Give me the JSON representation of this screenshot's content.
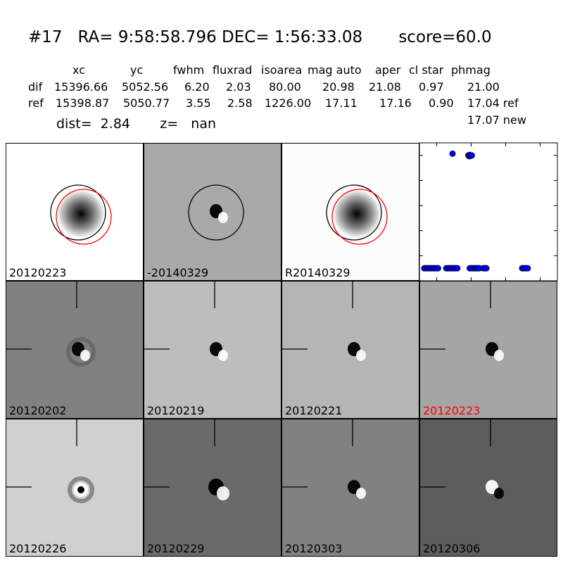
{
  "header": {
    "title": "#17   RA= 9:58:58.796 DEC= 1:56:33.08       score=60.0",
    "columns": [
      "xc",
      "yc",
      "fwhm",
      "fluxrad",
      "isoarea",
      "mag auto",
      "aper",
      "cl star",
      "phmag"
    ],
    "rows": [
      {
        "label": "dif",
        "values": [
          "15396.66",
          "5052.56",
          "6.20",
          "2.03",
          "80.00",
          "20.98",
          "21.08",
          "0.97",
          "21.00"
        ]
      },
      {
        "label": "ref",
        "values": [
          "15398.87",
          "5050.77",
          "3.55",
          "2.58",
          "1226.00",
          "17.11",
          "17.16",
          "0.90",
          "17.04 ref"
        ]
      }
    ],
    "extra_phmag": "17.07 new",
    "dist_line": "dist=  2.84       z=   nan"
  },
  "panels": [
    {
      "label": "20120223",
      "label_color": "#000000",
      "bg": "#ffffff",
      "kind": "ref-star",
      "circles": "black-red"
    },
    {
      "label": "-20140329",
      "label_color": "#000000",
      "bg": "#a9a9a9",
      "kind": "dipole",
      "circles": "black"
    },
    {
      "label": "R20140329",
      "label_color": "#000000",
      "bg": "#fcfcfc",
      "kind": "ref-star",
      "circles": "black-red"
    },
    {
      "label": "20120202",
      "label_color": "#000000",
      "bg": "#818181",
      "kind": "dipole-ring"
    },
    {
      "label": "20120219",
      "label_color": "#000000",
      "bg": "#bdbdbd",
      "kind": "dipole"
    },
    {
      "label": "20120221",
      "label_color": "#000000",
      "bg": "#b5b5b5",
      "kind": "dipole"
    },
    {
      "label": "20120223",
      "label_color": "#ff0000",
      "bg": "#a5a5a5",
      "kind": "dipole"
    },
    {
      "label": "20120226",
      "label_color": "#000000",
      "bg": "#d0d0d0",
      "kind": "ring-dot"
    },
    {
      "label": "20120229",
      "label_color": "#000000",
      "bg": "#6a6a6a",
      "kind": "dipole-strong"
    },
    {
      "label": "20120303",
      "label_color": "#000000",
      "bg": "#818181",
      "kind": "dipole"
    },
    {
      "label": "20120306",
      "label_color": "#000000",
      "bg": "#5d5d5d",
      "kind": "dipole-inverted"
    }
  ],
  "chart_data": {
    "type": "scatter",
    "title": "",
    "xlabel": "",
    "ylabel": "",
    "xlim": [
      -75,
      125
    ],
    "ylim": [
      26,
      20.5
    ],
    "y_inverted": true,
    "xticks": [
      -50,
      0,
      50,
      100
    ],
    "yticks": [
      21,
      22,
      23,
      24,
      25,
      26
    ],
    "marker_color": "#0000ff",
    "series": [
      {
        "x": [
          -68,
          -66,
          -64,
          -62,
          -60,
          -58,
          -56,
          -54,
          -52,
          -50,
          -48,
          -36,
          -34,
          -32,
          -30,
          -28,
          -26,
          -24,
          -22,
          -20,
          -27,
          -4,
          -3,
          -2,
          -1,
          0,
          1,
          -2,
          0,
          2,
          4,
          6,
          8,
          10,
          12,
          18,
          20,
          22,
          74,
          76,
          78,
          80,
          82
        ],
        "y": [
          25.5,
          25.5,
          25.5,
          25.5,
          25.5,
          25.5,
          25.5,
          25.5,
          25.5,
          25.5,
          25.5,
          25.5,
          25.5,
          25.5,
          25.5,
          25.5,
          25.5,
          25.5,
          25.5,
          25.5,
          20.93,
          21.0,
          21.03,
          20.98,
          21.02,
          21.0,
          21.0,
          25.5,
          25.5,
          25.5,
          25.5,
          25.5,
          25.5,
          25.5,
          25.5,
          25.5,
          25.5,
          25.5,
          25.5,
          25.5,
          25.5,
          25.5,
          25.5
        ]
      }
    ]
  }
}
